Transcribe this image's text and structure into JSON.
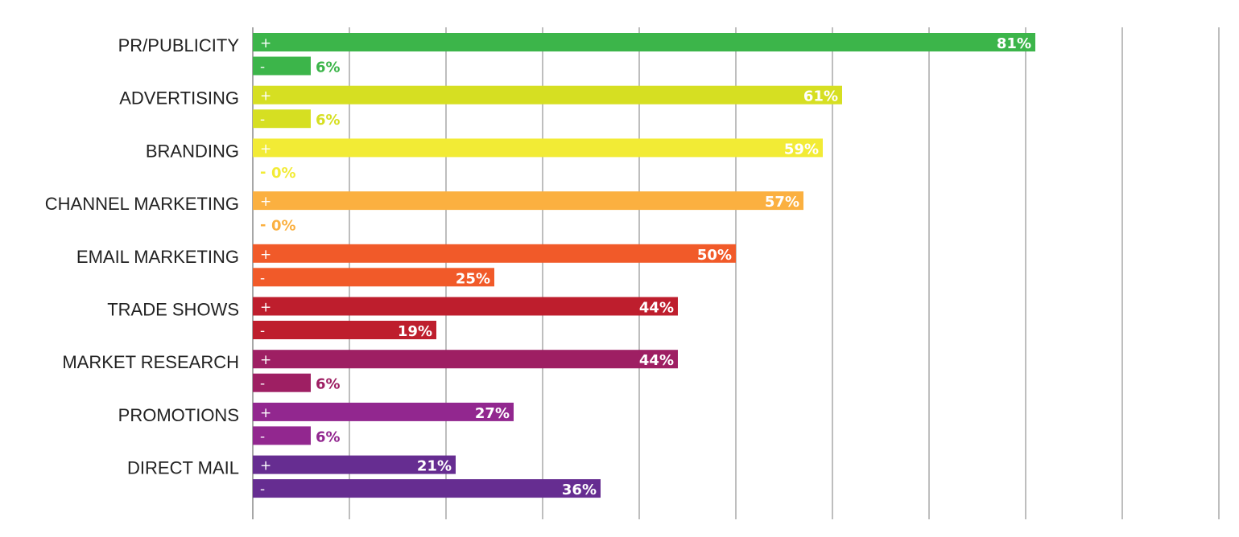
{
  "chart_data": {
    "type": "bar",
    "orientation": "horizontal",
    "categories": [
      "PR/PUBLICITY",
      "ADVERTISING",
      "BRANDING",
      "CHANNEL MARKETING",
      "EMAIL MARKETING",
      "TRADE SHOWS",
      "MARKET RESEARCH",
      "PROMOTIONS",
      "DIRECT MAIL"
    ],
    "series": [
      {
        "sign": "+",
        "values": [
          81,
          61,
          59,
          57,
          50,
          44,
          44,
          27,
          21
        ]
      },
      {
        "sign": "-",
        "values": [
          6,
          6,
          0,
          0,
          25,
          19,
          6,
          6,
          36
        ]
      }
    ],
    "value_suffix": "%",
    "colors": [
      "#3cb54a",
      "#d6df22",
      "#f2eb35",
      "#fbb040",
      "#f15a29",
      "#be1e2d",
      "#9e1f63",
      "#92278f",
      "#662d91"
    ],
    "xlim": [
      0,
      100
    ],
    "grid": true,
    "gridline_step": 10,
    "title": "",
    "xlabel": "",
    "ylabel": ""
  }
}
